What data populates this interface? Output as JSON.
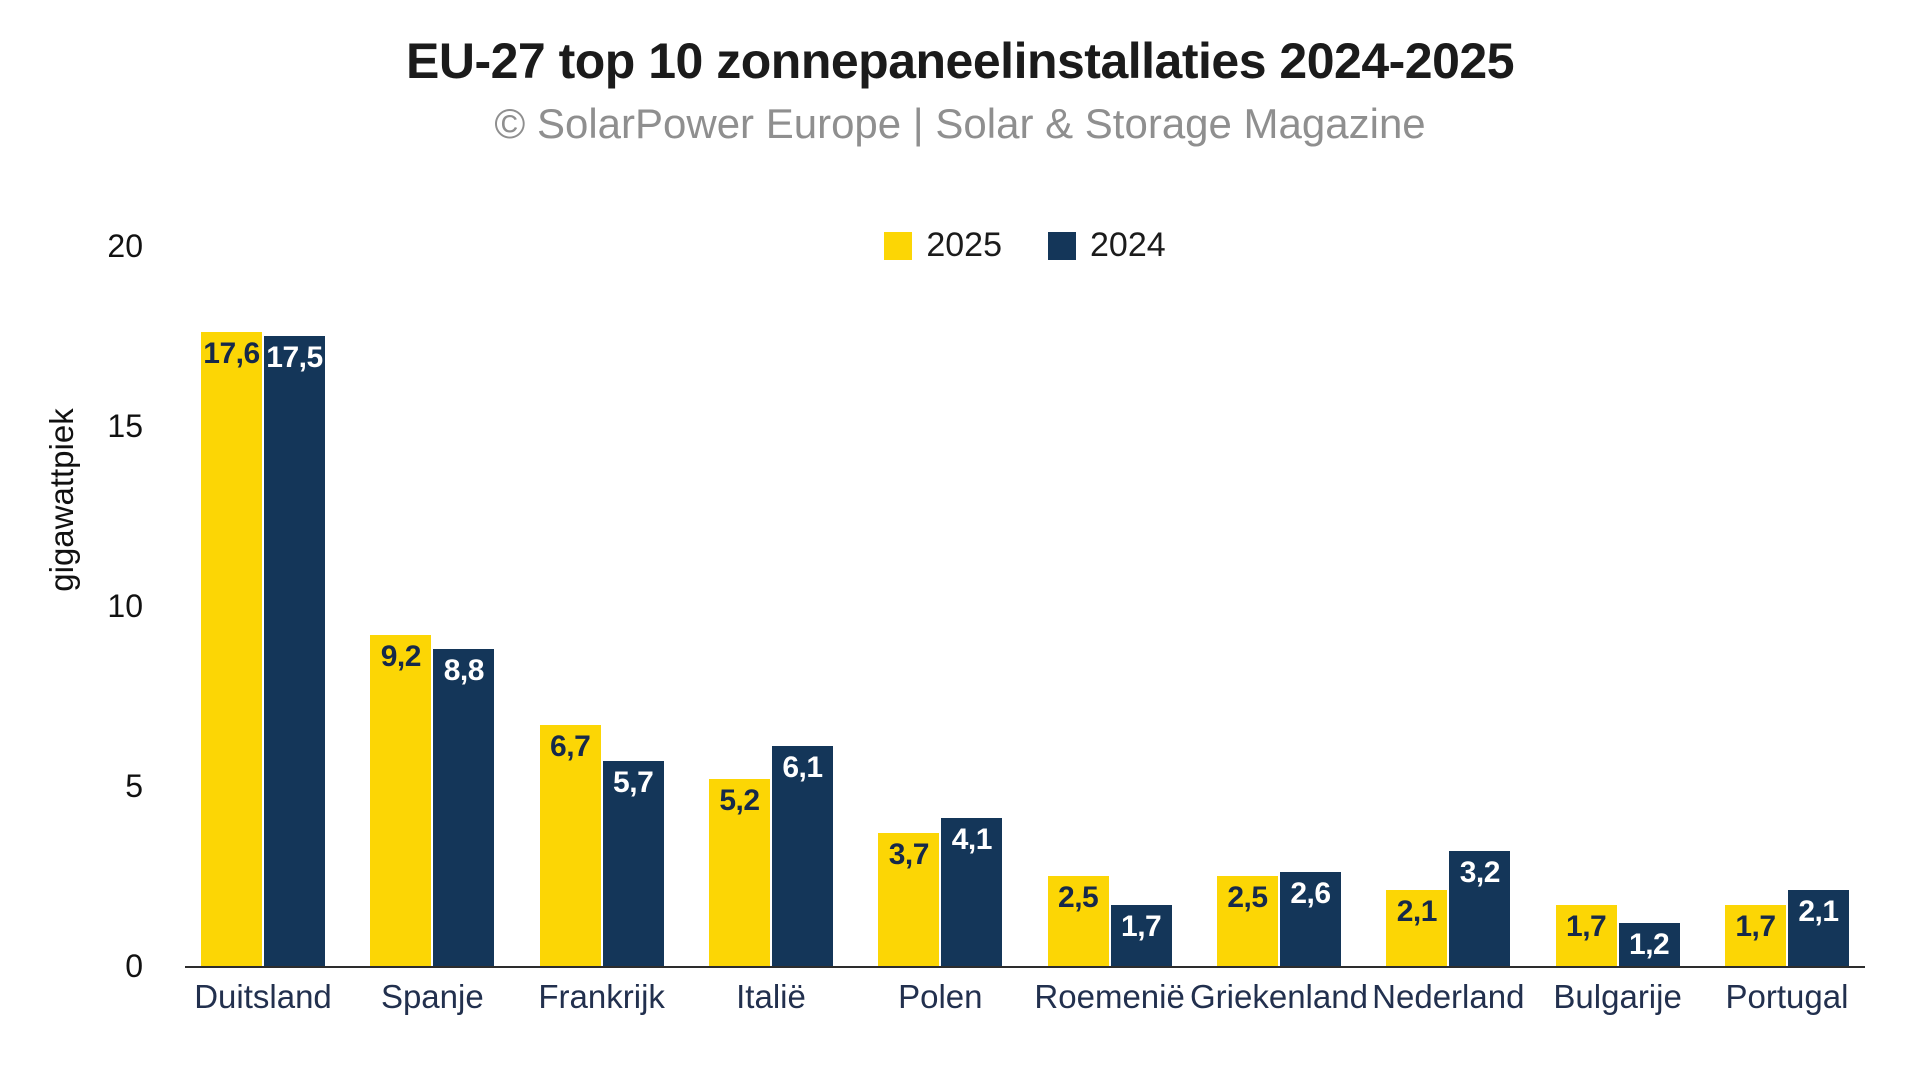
{
  "header": {
    "title": "EU-27 top 10 zonnepaneelinstallaties 2024-2025",
    "subtitle": "© SolarPower Europe | Solar & Storage Magazine"
  },
  "colors": {
    "yellow_2025": "#FCD605",
    "navy_2024": "#143659",
    "value_text_on_yellow": "#16294A",
    "value_text_on_navy": "#FFFFFF",
    "title_text": "#1B1B1B",
    "subtitle_text": "#8F8F8F",
    "country_label_text": "#22304E",
    "axis_line": "#2D2D2D"
  },
  "chart_data": {
    "type": "bar",
    "title": "EU-27 top 10 zonnepaneelinstallaties 2024-2025",
    "subtitle": "© SolarPower Europe | Solar & Storage Magazine",
    "categories": [
      "Duitsland",
      "Spanje",
      "Frankrijk",
      "Italië",
      "Polen",
      "Roemenië",
      "Griekenland",
      "Nederland",
      "Bulgarije",
      "Portugal"
    ],
    "series": [
      {
        "name": "2025",
        "color": "#FCD605",
        "label_color": "#16294A",
        "values": [
          17.6,
          9.2,
          6.7,
          5.2,
          3.7,
          2.5,
          2.5,
          2.1,
          1.7,
          1.7
        ],
        "labels": [
          "17,6",
          "9,2",
          "6,7",
          "5,2",
          "3,7",
          "2,5",
          "2,5",
          "2,1",
          "1,7",
          "1,7"
        ]
      },
      {
        "name": "2024",
        "color": "#143659",
        "label_color": "#FFFFFF",
        "values": [
          17.5,
          8.8,
          5.7,
          6.1,
          4.1,
          1.7,
          2.6,
          3.2,
          1.2,
          2.1
        ],
        "labels": [
          "17,5",
          "8,8",
          "5,7",
          "6,1",
          "4,1",
          "1,7",
          "2,6",
          "3,2",
          "1,2",
          "2,1"
        ]
      }
    ],
    "xlabel": "",
    "ylabel": "gigawattpiek",
    "yticks": [
      0,
      5,
      10,
      15,
      20
    ],
    "ylim": [
      0,
      20
    ],
    "grid": false,
    "legend_position": "top-center",
    "decimal_separator": ","
  }
}
